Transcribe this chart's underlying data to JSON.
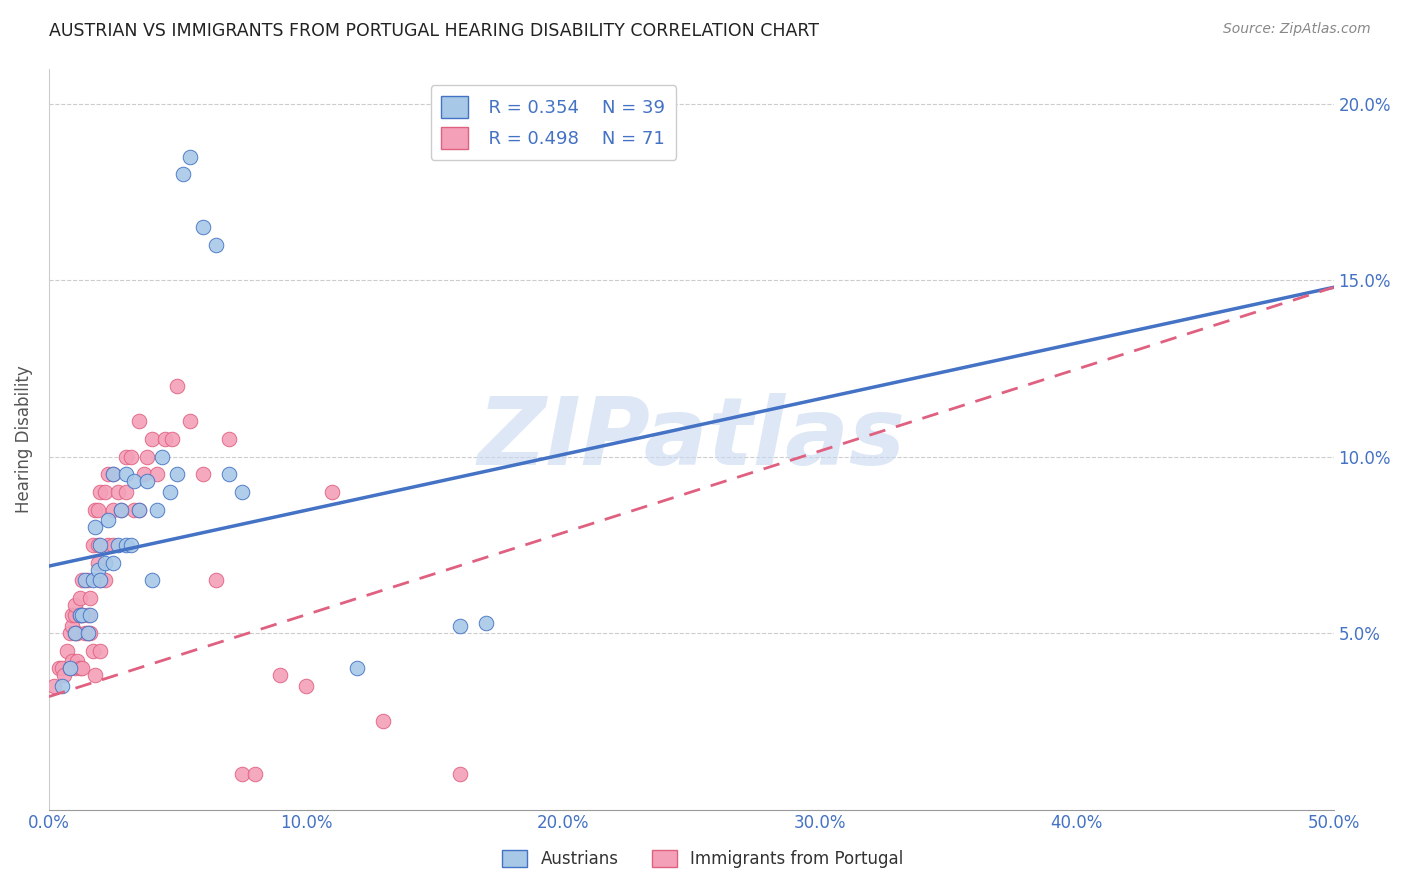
{
  "title": "AUSTRIAN VS IMMIGRANTS FROM PORTUGAL HEARING DISABILITY CORRELATION CHART",
  "source": "Source: ZipAtlas.com",
  "ylabel": "Hearing Disability",
  "xlim": [
    0.0,
    0.5
  ],
  "ylim": [
    0.0,
    0.21
  ],
  "xticks": [
    0.0,
    0.1,
    0.2,
    0.3,
    0.4,
    0.5
  ],
  "xticklabels": [
    "0.0%",
    "10.0%",
    "20.0%",
    "30.0%",
    "40.0%",
    "50.0%"
  ],
  "yticks": [
    0.05,
    0.1,
    0.15,
    0.2
  ],
  "yticklabels": [
    "5.0%",
    "10.0%",
    "15.0%",
    "20.0%"
  ],
  "legend_r_austrians": "R = 0.354",
  "legend_n_austrians": "N = 39",
  "legend_r_portugal": "R = 0.498",
  "legend_n_portugal": "N = 71",
  "color_austrians": "#a8c8e8",
  "color_portugal": "#f4a0b8",
  "color_line_austrians": "#4472c4",
  "color_line_portugal": "#e06080",
  "color_text_blue": "#4472c4",
  "watermark": "ZIPatlas",
  "watermark_color": "#c8d8f0",
  "aus_line_x0": 0.0,
  "aus_line_y0": 0.069,
  "aus_line_x1": 0.5,
  "aus_line_y1": 0.148,
  "por_line_x0": 0.0,
  "por_line_y0": 0.032,
  "por_line_x1": 0.5,
  "por_line_y1": 0.148,
  "austrians_x": [
    0.005,
    0.008,
    0.01,
    0.012,
    0.013,
    0.014,
    0.015,
    0.016,
    0.017,
    0.018,
    0.019,
    0.02,
    0.02,
    0.022,
    0.023,
    0.025,
    0.025,
    0.027,
    0.028,
    0.03,
    0.03,
    0.032,
    0.033,
    0.035,
    0.038,
    0.04,
    0.042,
    0.044,
    0.047,
    0.05,
    0.052,
    0.055,
    0.06,
    0.065,
    0.07,
    0.075,
    0.12,
    0.16,
    0.17
  ],
  "austrians_y": [
    0.035,
    0.04,
    0.05,
    0.055,
    0.055,
    0.065,
    0.05,
    0.055,
    0.065,
    0.08,
    0.068,
    0.065,
    0.075,
    0.07,
    0.082,
    0.07,
    0.095,
    0.075,
    0.085,
    0.075,
    0.095,
    0.075,
    0.093,
    0.085,
    0.093,
    0.065,
    0.085,
    0.1,
    0.09,
    0.095,
    0.18,
    0.185,
    0.165,
    0.16,
    0.095,
    0.09,
    0.04,
    0.052,
    0.053
  ],
  "portugal_x": [
    0.002,
    0.004,
    0.005,
    0.006,
    0.007,
    0.008,
    0.008,
    0.009,
    0.009,
    0.009,
    0.01,
    0.01,
    0.01,
    0.01,
    0.011,
    0.011,
    0.012,
    0.012,
    0.012,
    0.013,
    0.013,
    0.013,
    0.014,
    0.015,
    0.015,
    0.015,
    0.016,
    0.016,
    0.017,
    0.017,
    0.018,
    0.018,
    0.019,
    0.019,
    0.019,
    0.02,
    0.02,
    0.02,
    0.022,
    0.022,
    0.023,
    0.023,
    0.025,
    0.025,
    0.025,
    0.027,
    0.028,
    0.03,
    0.03,
    0.032,
    0.033,
    0.035,
    0.035,
    0.037,
    0.038,
    0.04,
    0.042,
    0.045,
    0.048,
    0.05,
    0.055,
    0.06,
    0.065,
    0.07,
    0.075,
    0.08,
    0.09,
    0.1,
    0.11,
    0.13,
    0.16
  ],
  "portugal_y": [
    0.035,
    0.04,
    0.04,
    0.038,
    0.045,
    0.04,
    0.05,
    0.042,
    0.052,
    0.055,
    0.04,
    0.05,
    0.055,
    0.058,
    0.042,
    0.05,
    0.04,
    0.055,
    0.06,
    0.04,
    0.055,
    0.065,
    0.05,
    0.05,
    0.055,
    0.065,
    0.05,
    0.06,
    0.045,
    0.075,
    0.038,
    0.085,
    0.07,
    0.075,
    0.085,
    0.045,
    0.065,
    0.09,
    0.065,
    0.09,
    0.095,
    0.075,
    0.085,
    0.095,
    0.075,
    0.09,
    0.085,
    0.1,
    0.09,
    0.1,
    0.085,
    0.085,
    0.11,
    0.095,
    0.1,
    0.105,
    0.095,
    0.105,
    0.105,
    0.12,
    0.11,
    0.095,
    0.065,
    0.105,
    0.01,
    0.01,
    0.038,
    0.035,
    0.09,
    0.025,
    0.01
  ]
}
